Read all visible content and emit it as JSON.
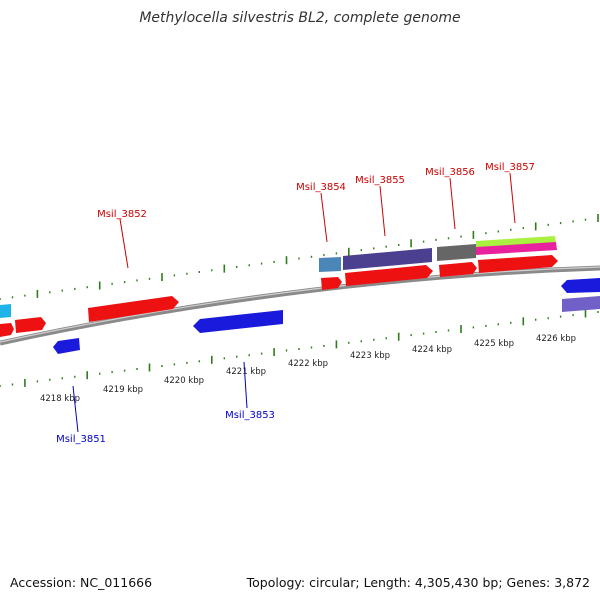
{
  "title": "Methylocella silvestris BL2, complete genome",
  "footer": {
    "accession": "Accession: NC_011666",
    "summary": "Topology: circular; Length: 4,305,430 bp; Genes: 3,872"
  },
  "colors": {
    "backbone": "#8a8a8a",
    "tick": "#2e7d1a",
    "forward_label": "#cc0000",
    "reverse_label": "#0000cc"
  },
  "ruler": {
    "unit": "kbp",
    "labels": [
      "4218 kbp",
      "4219 kbp",
      "4220 kbp",
      "4221 kbp",
      "4222 kbp",
      "4223 kbp",
      "4224 kbp",
      "4225 kbp",
      "4226 kbp"
    ]
  },
  "gene_labels": {
    "forward": [
      "Msil_3852",
      "Msil_3854",
      "Msil_3855",
      "Msil_3856",
      "Msil_3857"
    ],
    "reverse": [
      "Msil_3851",
      "Msil_3853"
    ]
  }
}
